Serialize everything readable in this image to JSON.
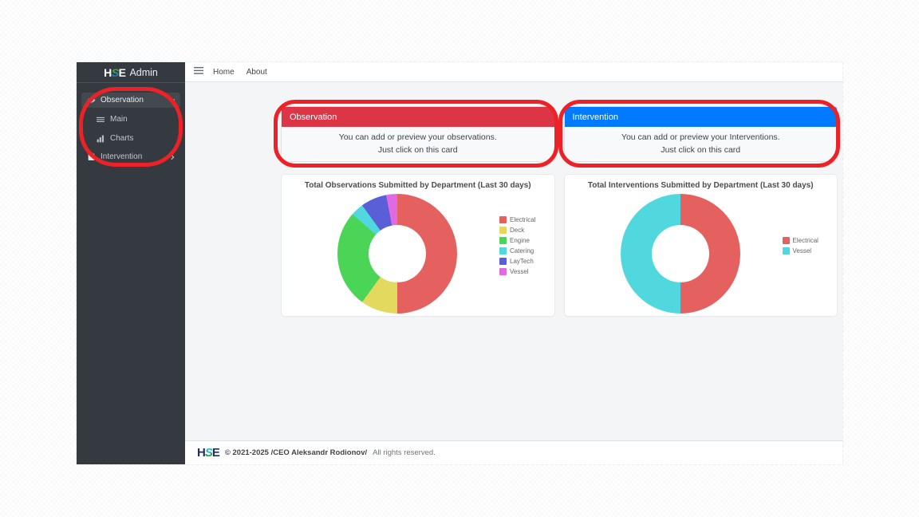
{
  "brand": {
    "h": "H",
    "s": "S",
    "e": "E",
    "suffix": "Admin"
  },
  "sidebar": {
    "items": [
      {
        "label": "Observation",
        "icon": "eye-icon",
        "expanded": true
      },
      {
        "label": "Main",
        "icon": "list-icon"
      },
      {
        "label": "Charts",
        "icon": "bar-chart-icon"
      },
      {
        "label": "Intervention",
        "icon": "clipboard-icon",
        "expanded": false
      }
    ]
  },
  "navbar": {
    "hamburger_icon": "menu-icon",
    "home_label": "Home",
    "about_label": "About"
  },
  "cards": {
    "observation": {
      "title": "Observation",
      "line1": "You can add or preview your observations.",
      "line2": "Just click on this card",
      "header_color": "#dc3545"
    },
    "intervention": {
      "title": "Intervention",
      "line1": "You can add or preview your Interventions.",
      "line2": "Just click on this card",
      "header_color": "#007bff"
    }
  },
  "chart_data": [
    {
      "type": "pie",
      "subtype": "donut",
      "title": "Total Observations Submitted by Department (Last 30 days)",
      "labels": [
        "Electrical",
        "Deck",
        "Engine",
        "Catering",
        "LayTech",
        "Vessel"
      ],
      "values_percent": [
        50,
        10,
        26.5,
        3.5,
        7,
        3
      ],
      "colors": [
        "#e4615f",
        "#e2d95e",
        "#4ad556",
        "#50d8de",
        "#5a5fd8",
        "#e06ae0"
      ],
      "legend_position": "right",
      "start_angle": "top",
      "direction": "clockwise"
    },
    {
      "type": "pie",
      "subtype": "donut",
      "title": "Total Interventions Submitted by Department (Last 30 days)",
      "labels": [
        "Electrical",
        "Vessel"
      ],
      "values_percent": [
        50,
        50
      ],
      "colors": [
        "#e4615f",
        "#50d8de"
      ],
      "legend_position": "right",
      "start_angle": "top",
      "direction": "clockwise"
    }
  ],
  "footer": {
    "copyright": "© 2021-2025 /CEO Aleksandr Rodionov/",
    "rights": "All rights reserved."
  },
  "annotations": {
    "color": "#ec2227",
    "targets": [
      "sidebar-menu",
      "observation-card",
      "intervention-card"
    ]
  }
}
